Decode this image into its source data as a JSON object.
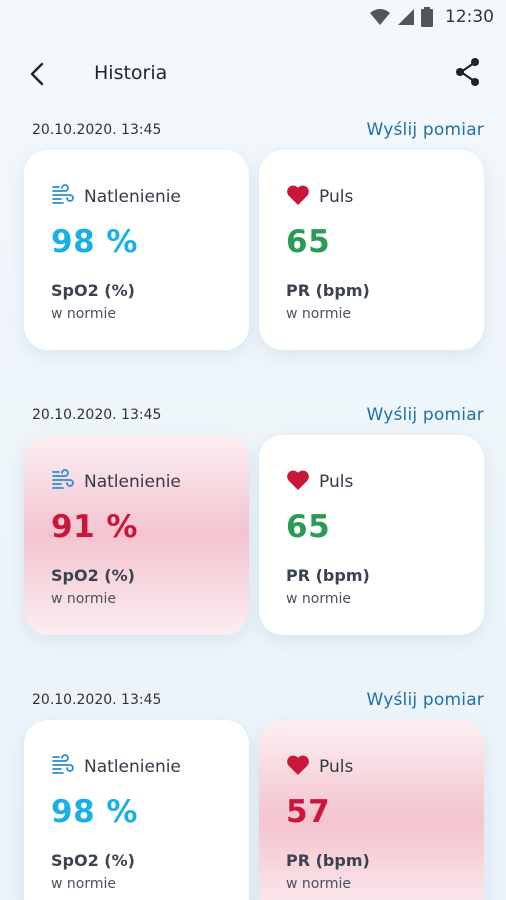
{
  "status_bar": {
    "time": "12:30"
  },
  "header": {
    "title": "Historia"
  },
  "entries": [
    {
      "date": "20.10.2020.  13:45",
      "send_label": "Wyślij pomiar",
      "oxygen": {
        "label": "Natlenienie",
        "value": "98 %",
        "unit": "SpO2 (%)",
        "status": "w normie"
      },
      "pulse": {
        "label": "Puls",
        "value": "65",
        "unit": "PR (bpm)",
        "status": "w normie"
      }
    },
    {
      "date": "20.10.2020.  13:45",
      "send_label": "Wyślij pomiar",
      "oxygen": {
        "label": "Natlenienie",
        "value": "91 %",
        "unit": "SpO2 (%)",
        "status": "w normie"
      },
      "pulse": {
        "label": "Puls",
        "value": "65",
        "unit": "PR (bpm)",
        "status": "w normie"
      }
    },
    {
      "date": "20.10.2020.  13:45",
      "send_label": "Wyślij pomiar",
      "oxygen": {
        "label": "Natlenienie",
        "value": "98 %",
        "unit": "SpO2 (%)",
        "status": "w normie"
      },
      "pulse": {
        "label": "Puls",
        "value": "57",
        "unit": "PR (bpm)",
        "status": "w normie"
      }
    }
  ],
  "colors": {
    "accent_link": "#1f6fb0",
    "oxygen_normal": "#1ab0e3",
    "pulse_normal": "#2b9a55",
    "alert_value": "#c8173a",
    "heart_icon": "#c8173a",
    "wind_icon": "#2a8fd0"
  },
  "icons": {
    "back": "arrow-left-icon",
    "share": "share-icon",
    "oxygen": "wind-icon",
    "pulse": "heart-icon",
    "wifi": "wifi-icon",
    "signal": "signal-icon",
    "battery": "battery-icon"
  }
}
